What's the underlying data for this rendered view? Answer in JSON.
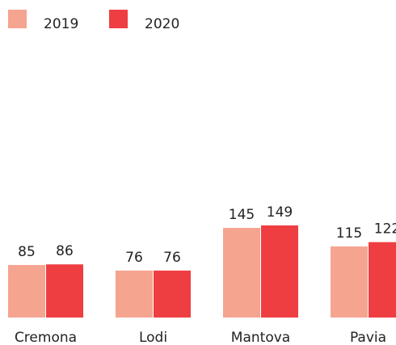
{
  "chart_data": {
    "type": "bar",
    "categories": [
      "Cremona",
      "Lodi",
      "Mantova",
      "Pavia"
    ],
    "series": [
      {
        "name": "2019",
        "color": "#f5a48f",
        "values": [
          85,
          76,
          145,
          115
        ]
      },
      {
        "name": "2020",
        "color": "#ef3e42",
        "values": [
          86,
          76,
          149,
          122
        ]
      }
    ],
    "legend": "top-left"
  }
}
